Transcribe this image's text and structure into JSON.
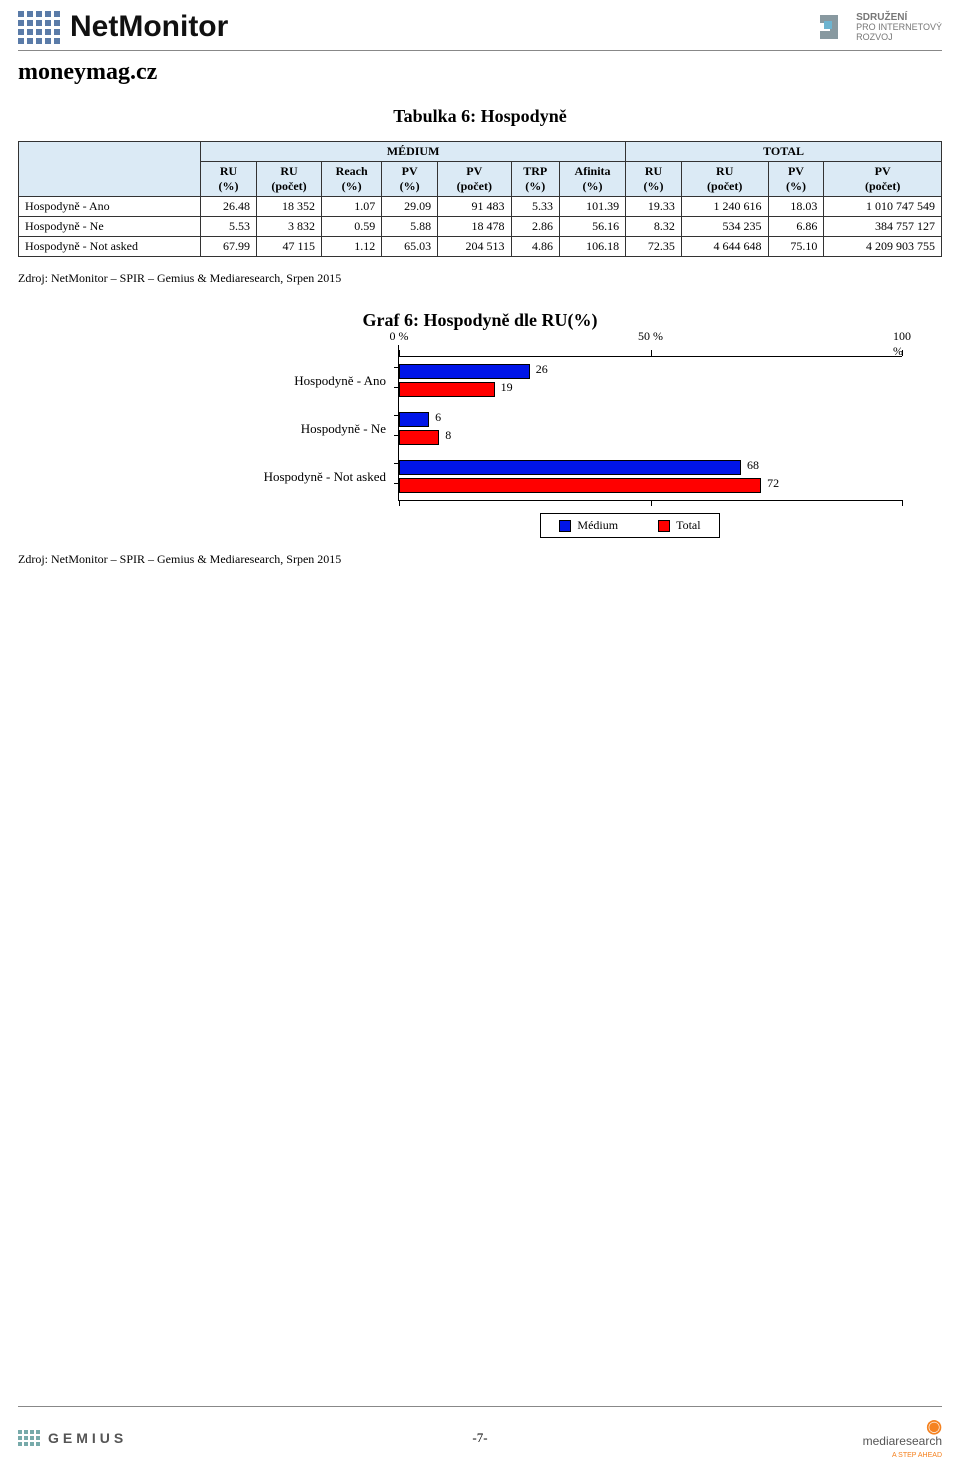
{
  "header": {
    "brand": "NetMonitor",
    "org_line1": "SDRUŽENÍ",
    "org_line2": "PRO INTERNETOVÝ",
    "org_line3": "ROZVOJ"
  },
  "site_title": "moneymag.cz",
  "table": {
    "title": "Tabulka 6: Hospodyně",
    "group_headers": {
      "blank": "",
      "medium": "MÉDIUM",
      "total": "TOTAL"
    },
    "columns": [
      "RU (%)",
      "RU (počet)",
      "Reach (%)",
      "PV (%)",
      "PV (počet)",
      "TRP (%)",
      "Afinita (%)",
      "RU (%)",
      "RU (počet)",
      "PV (%)",
      "PV (počet)"
    ],
    "rows": [
      {
        "label": "Hospodyně - Ano",
        "cells": [
          "26.48",
          "18 352",
          "1.07",
          "29.09",
          "91 483",
          "5.33",
          "101.39",
          "19.33",
          "1 240 616",
          "18.03",
          "1 010 747 549"
        ]
      },
      {
        "label": "Hospodyně - Ne",
        "cells": [
          "5.53",
          "3 832",
          "0.59",
          "5.88",
          "18 478",
          "2.86",
          "56.16",
          "8.32",
          "534 235",
          "6.86",
          "384 757 127"
        ]
      },
      {
        "label": "Hospodyně - Not asked",
        "cells": [
          "67.99",
          "47 115",
          "1.12",
          "65.03",
          "204 513",
          "4.86",
          "106.18",
          "72.35",
          "4 644 648",
          "75.10",
          "4 209 903 755"
        ]
      }
    ]
  },
  "source": "Zdroj: NetMonitor – SPIR – Gemius & Mediaresearch, Srpen 2015",
  "chart": {
    "title": "Graf 6: Hospodyně dle RU(%)",
    "x_min": 0,
    "x_max": 100,
    "x_ticks": [
      0,
      50,
      100
    ],
    "x_tick_labels": [
      "0 %",
      "50 %",
      "100 %"
    ],
    "bar_colors": {
      "medium": "#0015e8",
      "total": "#ff0000"
    },
    "border_color": "#000000",
    "categories": [
      {
        "label": "Hospodyně - Ano",
        "medium": 26,
        "total": 19
      },
      {
        "label": "Hospodyně - Ne",
        "medium": 6,
        "total": 8
      },
      {
        "label": "Hospodyně - Not asked",
        "medium": 68,
        "total": 72
      }
    ],
    "legend": {
      "medium": "Médium",
      "total": "Total"
    }
  },
  "footer": {
    "gemius": "GEMIUS",
    "mediaresearch": "mediaresearch",
    "mediaresearch_tag": "A STEP AHEAD",
    "page": "-7-"
  }
}
